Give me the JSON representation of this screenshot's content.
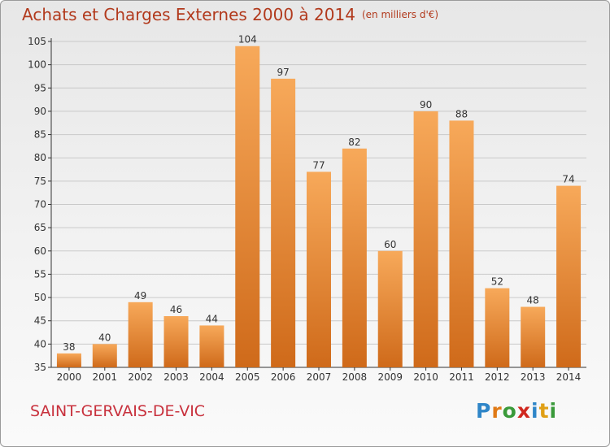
{
  "title": "Achats et Charges Externes 2000 à 2014",
  "title_unit": "(en milliers d'€)",
  "commune": "SAINT-GERVAIS-DE-VIC",
  "logo_text": "Proxiti",
  "logo_letters": [
    "P",
    "r",
    "o",
    "x",
    "i",
    "t",
    "i"
  ],
  "logo_colors": [
    "#2f86c8",
    "#e07a16",
    "#3a9a3a",
    "#d0281f",
    "#2f86c8",
    "#e0a016",
    "#3a9a3a"
  ],
  "colors": {
    "bar_top": "#f7a95a",
    "bar_bottom": "#cf6a1a",
    "axis": "#333333",
    "grid": "#c9c9c9"
  },
  "chart_data": {
    "type": "bar",
    "categories": [
      "2000",
      "2001",
      "2002",
      "2003",
      "2004",
      "2005",
      "2006",
      "2007",
      "2008",
      "2009",
      "2010",
      "2011",
      "2012",
      "2013",
      "2014"
    ],
    "values": [
      38,
      40,
      49,
      46,
      44,
      104,
      97,
      77,
      82,
      60,
      90,
      88,
      52,
      48,
      74
    ],
    "title": "Achats et Charges Externes 2000 à 2014",
    "ylim": [
      35,
      105
    ],
    "yticks": [
      35,
      40,
      45,
      50,
      55,
      60,
      65,
      70,
      75,
      80,
      85,
      90,
      95,
      100,
      105
    ],
    "grid": true
  }
}
